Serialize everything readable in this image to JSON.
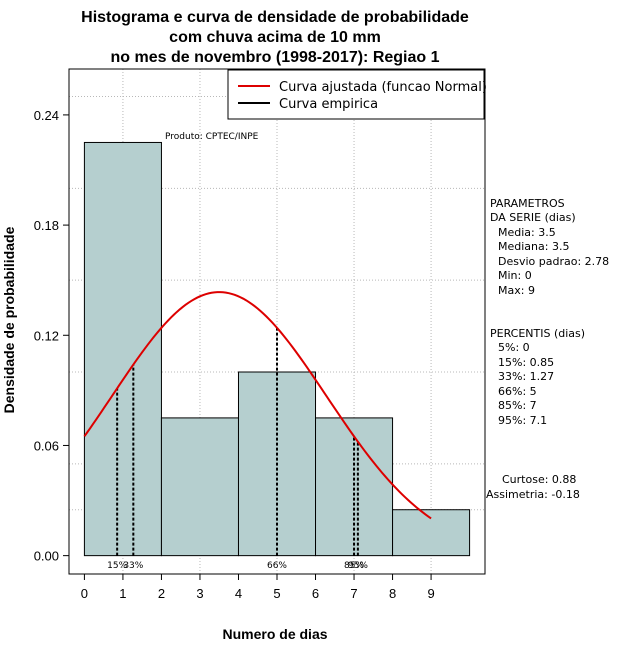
{
  "chart_data": {
    "type": "bar",
    "title_lines": [
      "Histograma e curva de densidade de probabilidade",
      "com chuva acima de 10 mm",
      "no mes de novembro (1998-2017): Regiao 1"
    ],
    "xlabel": "Numero de dias",
    "ylabel": "Densidade de probabilidade",
    "xlim": [
      -0.4,
      10.4
    ],
    "ylim": [
      -0.01,
      0.265
    ],
    "x_ticks": [
      0,
      1,
      2,
      3,
      4,
      5,
      6,
      7,
      8,
      9
    ],
    "x_tick_labels": [
      "0",
      "1",
      "2",
      "3",
      "4",
      "5",
      "6",
      "7",
      "8",
      "9"
    ],
    "y_ticks": [
      0.0,
      0.06,
      0.12,
      0.18,
      0.24
    ],
    "y_tick_labels": [
      "0.00",
      "0.06",
      "0.12",
      "0.18",
      "0.24"
    ],
    "x_grid": [
      1,
      3,
      5,
      7,
      9
    ],
    "y_grid": [
      0.025,
      0.05,
      0.1,
      0.15,
      0.2,
      0.25
    ],
    "bins": [
      {
        "start": 0,
        "end": 2,
        "density": 0.225
      },
      {
        "start": 2,
        "end": 4,
        "density": 0.075
      },
      {
        "start": 4,
        "end": 6,
        "density": 0.1
      },
      {
        "start": 6,
        "end": 8,
        "density": 0.075
      },
      {
        "start": 8,
        "end": 10,
        "density": 0.025
      }
    ],
    "bar_color": "#b5cfcf",
    "fitted_curve": {
      "type": "normal",
      "mean": 3.5,
      "sd": 2.78,
      "x_range": [
        0,
        9
      ],
      "color": "#dd0000"
    },
    "percentile_lines": [
      0.85,
      1.27,
      5,
      7,
      7.1
    ],
    "percentile_labels": [
      {
        "x": 0.85,
        "text": "15%"
      },
      {
        "x": 1.27,
        "text": "33%"
      },
      {
        "x": 5,
        "text": "66%"
      },
      {
        "x": 7,
        "text": "85%"
      },
      {
        "x": 7.1,
        "text": "95%"
      }
    ],
    "legend": [
      {
        "label": "Curva ajustada (funcao Normal)",
        "color": "#dd0000"
      },
      {
        "label": "Curva empirica",
        "color": "#000000"
      }
    ],
    "legend_position": "top-right",
    "product_label": "Produto: CPTEC/INPE"
  },
  "side_panel": {
    "params_header": [
      "PARAMETROS",
      "DA SERIE (dias)"
    ],
    "params": [
      "Media: 3.5",
      "Mediana: 3.5",
      "Desvio padrao: 2.78",
      "Min: 0",
      "Max: 9"
    ],
    "percentis_header": "PERCENTIS (dias)",
    "percentis": [
      "5%: 0",
      "15%: 0.85",
      "33%: 1.27",
      "66%: 5",
      "85%: 7",
      "95%: 7.1"
    ],
    "curtose": "Curtose: 0.88",
    "assimetria": "Assimetria: -0.18"
  }
}
